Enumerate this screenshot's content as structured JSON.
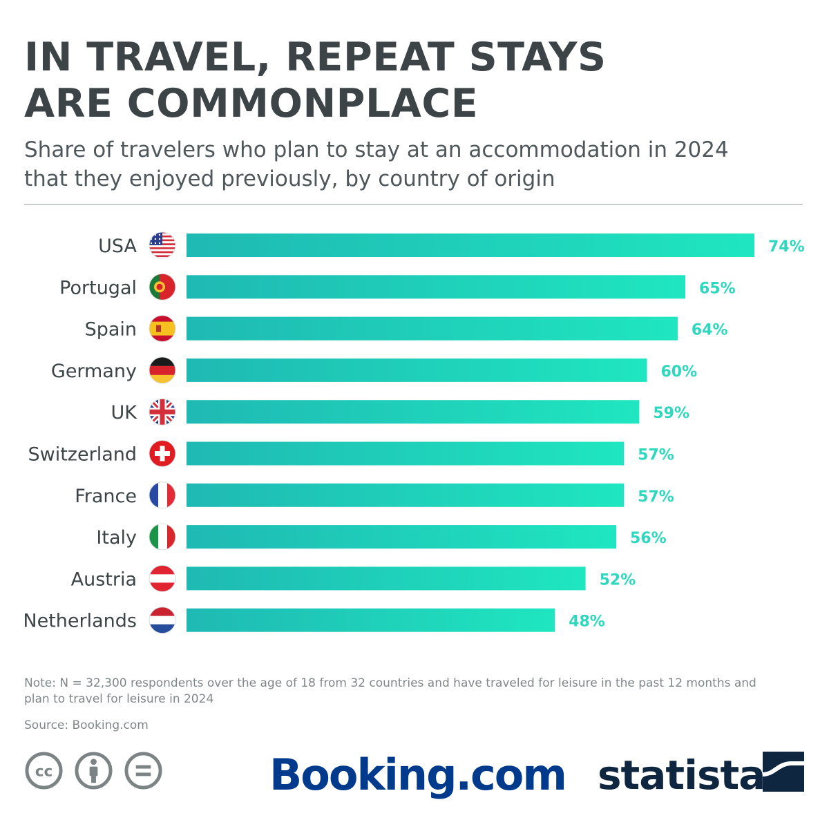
{
  "header": {
    "title_line1": "IN TRAVEL, REPEAT STAYS",
    "title_line2": "ARE COMMONPLACE",
    "subtitle_line1": "Share of travelers who plan to stay at an accommodation in 2024",
    "subtitle_line2": "that they enjoyed previously, by country of origin"
  },
  "chart_data": {
    "type": "bar",
    "orientation": "horizontal",
    "categories": [
      "USA",
      "Portugal",
      "Spain",
      "Germany",
      "UK",
      "Switzerland",
      "France",
      "Italy",
      "Austria",
      "Netherlands"
    ],
    "values": [
      74,
      65,
      64,
      60,
      59,
      57,
      57,
      56,
      52,
      48
    ],
    "value_labels": [
      "74%",
      "65%",
      "64%",
      "60%",
      "59%",
      "57%",
      "57%",
      "56%",
      "52%",
      "48%"
    ],
    "flags": [
      "us-flag-icon",
      "portugal-flag-icon",
      "spain-flag-icon",
      "germany-flag-icon",
      "uk-flag-icon",
      "switzerland-flag-icon",
      "france-flag-icon",
      "italy-flag-icon",
      "austria-flag-icon",
      "netherlands-flag-icon"
    ],
    "unit": "%",
    "xlim": [
      0,
      74
    ],
    "grid": false,
    "colors": {
      "bar_start": "#1fb9b3",
      "bar_end": "#1fe6c0",
      "label": "#2dd8be"
    }
  },
  "footer": {
    "note_line1": "Note: N = 32,300 respondents over the age of 18 from 32 countries and have traveled for leisure in the past 12 months and",
    "note_line2": "plan to travel for leisure in 2024",
    "source": "Source: Booking.com",
    "booking_logo": "Booking.com",
    "statista_logo": "statista",
    "license_icons": [
      "cc-icon",
      "attribution-icon",
      "no-derivatives-icon"
    ]
  }
}
